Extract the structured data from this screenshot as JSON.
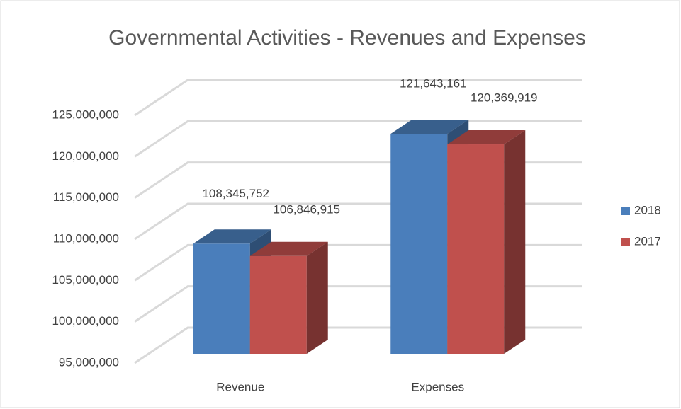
{
  "chart_data": {
    "type": "bar3d",
    "title": "Governmental Activities - Revenues and Expenses",
    "categories": [
      "Revenue",
      "Expenses"
    ],
    "series": [
      {
        "name": "2018",
        "color": "#4a7ebb",
        "values": [
          108345752,
          121643161
        ],
        "value_labels": [
          "108,345,752",
          "121,643,161"
        ]
      },
      {
        "name": "2017",
        "color": "#c0504d",
        "values": [
          106846915,
          120369919
        ],
        "value_labels": [
          "106,846,915",
          "120,369,919"
        ]
      }
    ],
    "ylim": [
      95000000,
      125000000
    ],
    "yticks": [
      {
        "value": 95000000,
        "label": "95,000,000"
      },
      {
        "value": 100000000,
        "label": "100,000,000"
      },
      {
        "value": 105000000,
        "label": "105,000,000"
      },
      {
        "value": 110000000,
        "label": "110,000,000"
      },
      {
        "value": 115000000,
        "label": "115,000,000"
      },
      {
        "value": 120000000,
        "label": "120,000,000"
      },
      {
        "value": 125000000,
        "label": "125,000,000"
      }
    ],
    "grid": true,
    "legend": "right"
  }
}
